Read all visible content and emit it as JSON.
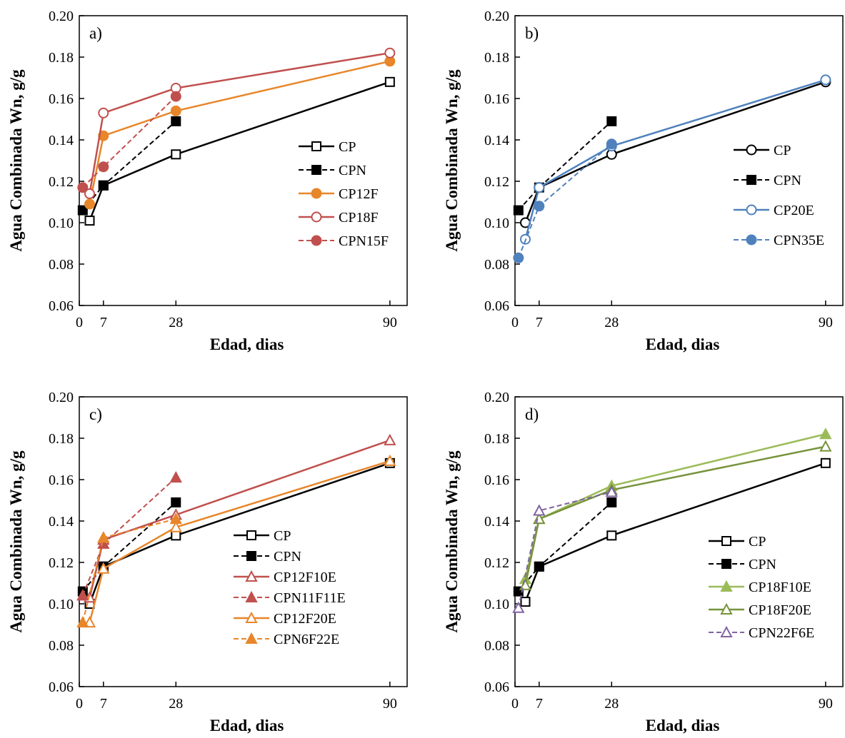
{
  "chart_data": [
    {
      "type": "line",
      "panel_label": "a)",
      "xlabel": "Edad, dias",
      "ylabel": "Agua Combinada Wn, g/g",
      "xlim": [
        0,
        95
      ],
      "ylim": [
        0.06,
        0.2
      ],
      "xticks": [
        0,
        7,
        28,
        90
      ],
      "yticks": [
        0.06,
        0.08,
        0.1,
        0.12,
        0.14,
        0.16,
        0.18,
        0.2
      ],
      "legend_position": "right-center",
      "series": [
        {
          "name": "CP",
          "x": [
            3,
            7,
            28,
            90
          ],
          "y": [
            0.101,
            0.118,
            0.133,
            0.168
          ],
          "color": "#000000",
          "marker": "square",
          "filled": false,
          "dashed": false
        },
        {
          "name": "CPN",
          "x": [
            1,
            7,
            28
          ],
          "y": [
            0.106,
            0.118,
            0.149
          ],
          "color": "#000000",
          "marker": "square",
          "filled": true,
          "dashed": true
        },
        {
          "name": "CP12F",
          "x": [
            3,
            7,
            28,
            90
          ],
          "y": [
            0.109,
            0.142,
            0.154,
            0.178
          ],
          "color": "#E8862A",
          "marker": "circle",
          "filled": true,
          "dashed": false
        },
        {
          "name": "CP18F",
          "x": [
            3,
            7,
            28,
            90
          ],
          "y": [
            0.114,
            0.153,
            0.165,
            0.182
          ],
          "color": "#C0504D",
          "marker": "circle",
          "filled": false,
          "dashed": false
        },
        {
          "name": "CPN15F",
          "x": [
            1,
            7,
            28
          ],
          "y": [
            0.117,
            0.127,
            0.161
          ],
          "color": "#C0504D",
          "marker": "circle",
          "filled": true,
          "dashed": true
        }
      ]
    },
    {
      "type": "line",
      "panel_label": "b)",
      "xlabel": "Edad, dias",
      "ylabel": "Agua Combinada Wn, g/g",
      "xlim": [
        0,
        95
      ],
      "ylim": [
        0.06,
        0.2
      ],
      "xticks": [
        0,
        7,
        28,
        90
      ],
      "yticks": [
        0.06,
        0.08,
        0.1,
        0.12,
        0.14,
        0.16,
        0.18,
        0.2
      ],
      "legend_position": "right-center",
      "series": [
        {
          "name": "CP",
          "x": [
            3,
            7,
            28,
            90
          ],
          "y": [
            0.1,
            0.117,
            0.133,
            0.168
          ],
          "color": "#000000",
          "marker": "circle",
          "filled": false,
          "dashed": false
        },
        {
          "name": "CPN",
          "x": [
            1,
            7,
            28
          ],
          "y": [
            0.106,
            0.117,
            0.149
          ],
          "color": "#000000",
          "marker": "square",
          "filled": true,
          "dashed": true
        },
        {
          "name": "CP20E",
          "x": [
            3,
            7,
            28,
            90
          ],
          "y": [
            0.092,
            0.117,
            0.137,
            0.169
          ],
          "color": "#4F81BD",
          "marker": "circle",
          "filled": false,
          "dashed": false
        },
        {
          "name": "CPN35E",
          "x": [
            1,
            7,
            28
          ],
          "y": [
            0.083,
            0.108,
            0.138
          ],
          "color": "#4F81BD",
          "marker": "circle",
          "filled": true,
          "dashed": true
        }
      ]
    },
    {
      "type": "line",
      "panel_label": "c)",
      "xlabel": "Edad, dias",
      "ylabel": "Agua Combinada Wn, g/g",
      "xlim": [
        0,
        95
      ],
      "ylim": [
        0.06,
        0.2
      ],
      "xticks": [
        0,
        7,
        28,
        90
      ],
      "yticks": [
        0.06,
        0.08,
        0.1,
        0.12,
        0.14,
        0.16,
        0.18,
        0.2
      ],
      "legend_position": "right-bottom",
      "series": [
        {
          "name": "CP",
          "x": [
            3,
            7,
            28,
            90
          ],
          "y": [
            0.1,
            0.118,
            0.133,
            0.168
          ],
          "color": "#000000",
          "marker": "square",
          "filled": false,
          "dashed": false
        },
        {
          "name": "CPN",
          "x": [
            1,
            7,
            28
          ],
          "y": [
            0.106,
            0.118,
            0.149
          ],
          "color": "#000000",
          "marker": "square",
          "filled": true,
          "dashed": true
        },
        {
          "name": "CP12F10E",
          "x": [
            3,
            7,
            28,
            90
          ],
          "y": [
            0.103,
            0.131,
            0.143,
            0.179
          ],
          "color": "#C0504D",
          "marker": "triangle",
          "filled": false,
          "dashed": false
        },
        {
          "name": "CPN11F11E",
          "x": [
            1,
            7,
            28
          ],
          "y": [
            0.104,
            0.129,
            0.161
          ],
          "color": "#C0504D",
          "marker": "triangle",
          "filled": true,
          "dashed": true
        },
        {
          "name": "CP12F20E",
          "x": [
            3,
            7,
            28,
            90
          ],
          "y": [
            0.091,
            0.117,
            0.137,
            0.169
          ],
          "color": "#E8862A",
          "marker": "triangle",
          "filled": false,
          "dashed": false
        },
        {
          "name": "CPN6F22E",
          "x": [
            1,
            7,
            28
          ],
          "y": [
            0.091,
            0.132,
            0.141
          ],
          "color": "#E8862A",
          "marker": "triangle",
          "filled": true,
          "dashed": true
        }
      ]
    },
    {
      "type": "line",
      "panel_label": "d)",
      "xlabel": "Edad, dias",
      "ylabel": "Agua Combinada Wn, g/g",
      "xlim": [
        0,
        95
      ],
      "ylim": [
        0.06,
        0.2
      ],
      "xticks": [
        0,
        7,
        28,
        90
      ],
      "yticks": [
        0.06,
        0.08,
        0.1,
        0.12,
        0.14,
        0.16,
        0.18,
        0.2
      ],
      "legend_position": "right-bottom",
      "series": [
        {
          "name": "CP",
          "x": [
            3,
            7,
            28,
            90
          ],
          "y": [
            0.101,
            0.118,
            0.133,
            0.168
          ],
          "color": "#000000",
          "marker": "square",
          "filled": false,
          "dashed": false
        },
        {
          "name": "CPN",
          "x": [
            1,
            7,
            28
          ],
          "y": [
            0.106,
            0.118,
            0.149
          ],
          "color": "#000000",
          "marker": "square",
          "filled": true,
          "dashed": true
        },
        {
          "name": "CP18F10E",
          "x": [
            3,
            7,
            28,
            90
          ],
          "y": [
            0.112,
            0.141,
            0.157,
            0.182
          ],
          "color": "#9BBB59",
          "marker": "triangle",
          "filled": true,
          "dashed": false
        },
        {
          "name": "CP18F20E",
          "x": [
            3,
            7,
            28,
            90
          ],
          "y": [
            0.109,
            0.141,
            0.155,
            0.176
          ],
          "color": "#77933C",
          "marker": "triangle",
          "filled": false,
          "dashed": false
        },
        {
          "name": "CPN22F6E",
          "x": [
            1,
            7,
            28
          ],
          "y": [
            0.098,
            0.145,
            0.154
          ],
          "color": "#8064A2",
          "marker": "triangle",
          "filled": false,
          "dashed": true
        }
      ]
    }
  ]
}
